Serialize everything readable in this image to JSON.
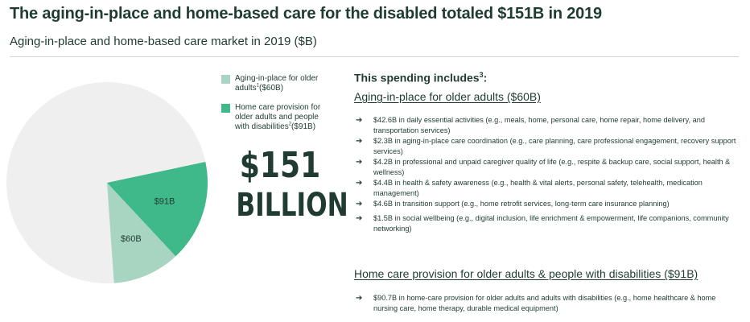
{
  "title": "The aging-in-place and home-based care for the disabled totaled $151B in 2019",
  "subtitle": "Aging-in-place and home-based care market in 2019 ($B)",
  "legend": [
    {
      "label": "Aging-in-place for older adults",
      "sup": "1",
      "value_text": "($60B)",
      "color": "#a8d5c2"
    },
    {
      "label": "Home care provision for older adults and people with disabilities",
      "sup": "2",
      "value_text": "($91B)",
      "color": "#3fb88a"
    }
  ],
  "total": {
    "amount": "$151",
    "unit": "BILLION"
  },
  "chart_data": {
    "type": "pie",
    "slices": [
      {
        "label": "$60B",
        "value": 60,
        "color": "#a8d5c2"
      },
      {
        "label": "$91B",
        "value": 91,
        "color": "#3fb88a"
      }
    ],
    "remainder_color": "#efefef"
  },
  "spending": {
    "heading": "This spending includes",
    "heading_sup": "3",
    "heading_suffix": ":",
    "section1_title": "Aging-in-place for older adults ($60B)",
    "section1_items": [
      "$42.6B in daily essential activities (e.g., meals, home, personal care, home repair, home delivery, and transportation services)",
      "$2.3B in aging-in-place care coordination (e.g., care planning, care professional engagement, recovery support services)",
      "$4.2B in professional and unpaid caregiver quality of life (e.g., respite & backup care, social support, health & wellness)",
      "$4.4B in health & safety awareness (e.g., health & vital alerts, personal safety, telehealth, medication management)",
      "$4.6B in transition support (e.g., home retrofit services, long-term care insurance planning)",
      "$1.5B in social wellbeing (e.g., digital inclusion, life enrichment & empowerment, life companions, community networking)"
    ],
    "section2_title": "Home care provision for older adults & people with disabilities ($91B)",
    "section2_items": [
      "$90.7B in home-care provision for older adults and adults with disabilities (e.g., home healthcare & home nursing care, home therapy, durable medical equipment)"
    ],
    "arrow": "➔"
  }
}
